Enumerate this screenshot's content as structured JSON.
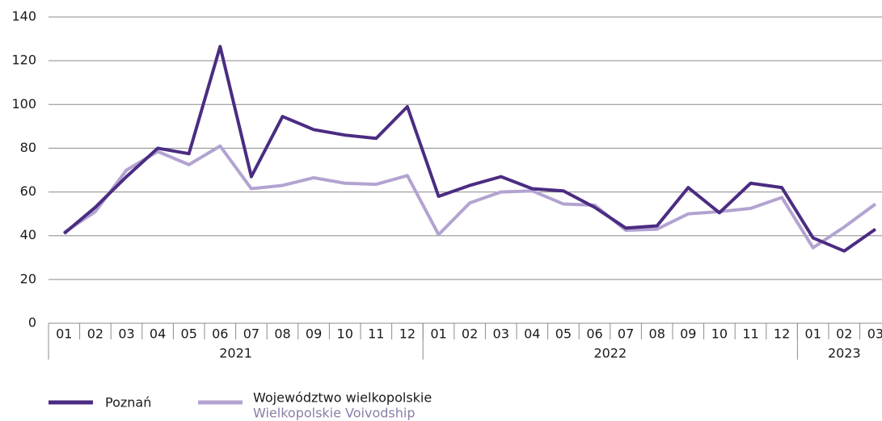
{
  "chart_data": {
    "type": "line",
    "categories": [
      "01",
      "02",
      "03",
      "04",
      "05",
      "06",
      "07",
      "08",
      "09",
      "10",
      "11",
      "12",
      "01",
      "02",
      "03",
      "04",
      "05",
      "06",
      "07",
      "08",
      "09",
      "10",
      "11",
      "12",
      "01",
      "02",
      "03"
    ],
    "group_labels": [
      "2021",
      "2022",
      "2023"
    ],
    "group_sizes": [
      12,
      12,
      3
    ],
    "series": [
      {
        "name": "Poznań",
        "color": "#4b2c82",
        "values": [
          41,
          53,
          67,
          80,
          77.5,
          126.5,
          67,
          94.5,
          88.5,
          86,
          84.5,
          99,
          58,
          63,
          67,
          61.5,
          60.5,
          53,
          43.5,
          44.5,
          62,
          50.5,
          64,
          62,
          39,
          33,
          43
        ]
      },
      {
        "name": "Województwo wielkopolskie",
        "name_en": "Wielkopolskie Voivodship",
        "color": "#b3a3d1",
        "values": [
          41.5,
          51,
          70,
          78.5,
          72.5,
          81,
          61.5,
          63,
          66.5,
          64,
          63.5,
          67.5,
          40.5,
          55,
          60,
          60.5,
          54.5,
          54,
          42.5,
          43,
          50,
          51,
          52.5,
          57.5,
          34.5,
          44,
          54.5
        ]
      }
    ],
    "ylim": [
      0,
      140
    ],
    "yticks": [
      0,
      20,
      40,
      60,
      80,
      100,
      120,
      140
    ],
    "grid": true,
    "legend": "bottom-left"
  }
}
